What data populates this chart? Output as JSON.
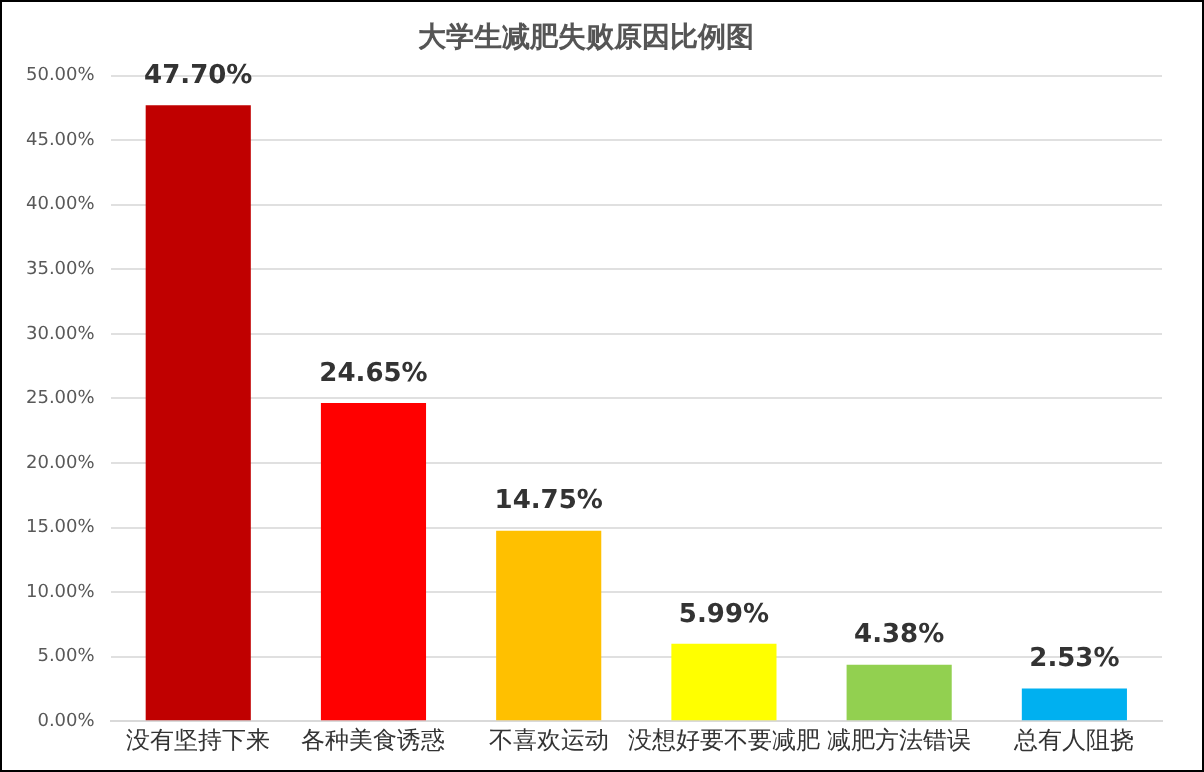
{
  "chart_data": {
    "type": "bar",
    "title": "大学生减肥失败原因比例图",
    "categories": [
      "没有坚持下来",
      "各种美食诱惑",
      "不喜欢运动",
      "没想好要不要减肥",
      "减肥方法错误",
      "总有人阻挠"
    ],
    "values": [
      47.7,
      24.65,
      14.75,
      5.99,
      4.38,
      2.53
    ],
    "colors": [
      "#c00000",
      "#ff0000",
      "#ffc000",
      "#ffff00",
      "#92d050",
      "#00b0f0"
    ],
    "value_labels": [
      "47.70%",
      "24.65%",
      "14.75%",
      "5.99%",
      "4.38%",
      "2.53%"
    ],
    "ylim": [
      0,
      50
    ],
    "yticks": [
      {
        "value": 0,
        "label": "0.00%"
      },
      {
        "value": 5,
        "label": "5.00%"
      },
      {
        "value": 10,
        "label": "10.00%"
      },
      {
        "value": 15,
        "label": "15.00%"
      },
      {
        "value": 20,
        "label": "20.00%"
      },
      {
        "value": 25,
        "label": "25.00%"
      },
      {
        "value": 30,
        "label": "30.00%"
      },
      {
        "value": 35,
        "label": "35.00%"
      },
      {
        "value": 40,
        "label": "40.00%"
      },
      {
        "value": 45,
        "label": "45.00%"
      },
      {
        "value": 50,
        "label": "50.00%"
      }
    ],
    "grid": "y",
    "legend": false
  }
}
